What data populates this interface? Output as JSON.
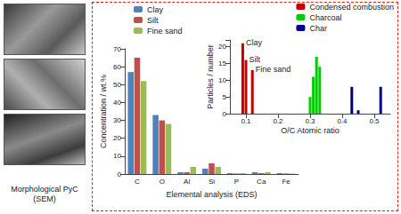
{
  "panel_label": "Morphological PyC (SEM)",
  "chart_data": [
    {
      "type": "bar",
      "x_label": "Elemental analysis (EDS)",
      "y_label": "Concentration / wt.%",
      "categories": [
        "C",
        "O",
        "Al",
        "Si",
        "P",
        "Ca",
        "Fe"
      ],
      "series": [
        {
          "name": "Clay",
          "color": "#4f81bd",
          "values": [
            57,
            33,
            1,
            3,
            0.5,
            1,
            0.5
          ]
        },
        {
          "name": "Silt",
          "color": "#c0504d",
          "values": [
            65,
            30,
            1,
            6,
            0.3,
            0.5,
            0.3
          ]
        },
        {
          "name": "Fine sand",
          "color": "#9bbb59",
          "values": [
            52,
            28,
            4,
            4,
            0.5,
            1,
            0.3
          ]
        }
      ],
      "ylim": [
        0,
        70
      ],
      "yticks": [
        0,
        10,
        20,
        30,
        40,
        50,
        60,
        70
      ],
      "legend": "upper left",
      "grid": false
    },
    {
      "type": "bar",
      "x_label": "O/C Atomic ratio",
      "y_label": "Particles / number",
      "series": [
        {
          "name": "Condensed combustion",
          "color": "#c00000",
          "x": [
            0.09,
            0.1,
            0.12
          ],
          "values": [
            21,
            16,
            13
          ]
        },
        {
          "name": "Charcoal",
          "color": "#00cc00",
          "x": [
            0.3,
            0.31,
            0.32,
            0.33
          ],
          "values": [
            5,
            11,
            17,
            14
          ]
        },
        {
          "name": "Char",
          "color": "#00008b",
          "x": [
            0.43,
            0.45,
            0.52
          ],
          "values": [
            8,
            1,
            8
          ]
        }
      ],
      "annotations": [
        {
          "text": "Clay",
          "x": 0.09,
          "y": 21
        },
        {
          "text": "Silt",
          "x": 0.1,
          "y": 16
        },
        {
          "text": "Fine sand",
          "x": 0.12,
          "y": 13
        }
      ],
      "xlim": [
        0.05,
        0.55
      ],
      "xticks": [
        0.1,
        0.2,
        0.3,
        0.4,
        0.5
      ],
      "ylim": [
        0,
        22
      ],
      "yticks": [
        0,
        5,
        10,
        15,
        20
      ],
      "legend": "upper right",
      "grid": false
    }
  ]
}
